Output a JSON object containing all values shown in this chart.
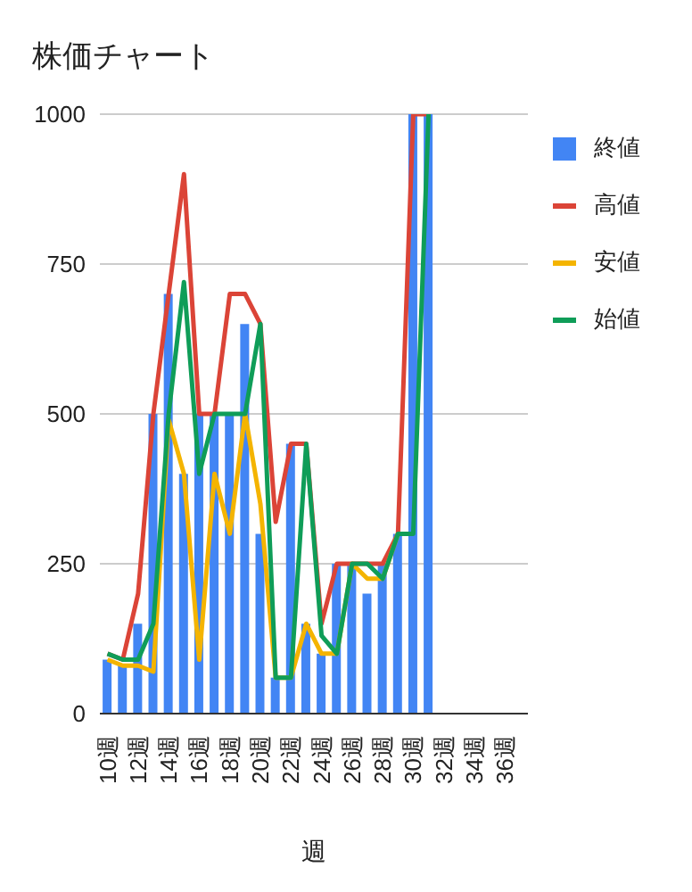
{
  "chart_data": {
    "type": "bar",
    "title": "株価チャート",
    "xlabel": "週",
    "categories": [
      "10週",
      null,
      "12週",
      null,
      "14週",
      null,
      "16週",
      null,
      "18週",
      null,
      "20週",
      null,
      "22週",
      null,
      "24週",
      null,
      "26週",
      null,
      "28週",
      null,
      "30週",
      null,
      "32週",
      null,
      "34週",
      null,
      "36週",
      null
    ],
    "series": [
      {
        "name": "終値",
        "color": "#4285f4",
        "values": [
          90,
          80,
          150,
          500,
          700,
          400,
          500,
          500,
          500,
          650,
          300,
          60,
          450,
          150,
          100,
          250,
          250,
          200,
          250,
          300,
          1000,
          1000,
          null,
          null,
          null,
          null,
          null,
          null
        ]
      },
      {
        "name": "高値",
        "type": "line",
        "color": "#db4437",
        "values": [
          100,
          90,
          200,
          500,
          700,
          900,
          500,
          500,
          700,
          700,
          650,
          320,
          450,
          450,
          150,
          250,
          250,
          250,
          250,
          300,
          1000,
          1000,
          null,
          null,
          null,
          null,
          null,
          null
        ]
      },
      {
        "name": "安値",
        "type": "line",
        "color": "#f4b400",
        "values": [
          90,
          80,
          80,
          70,
          490,
          400,
          90,
          400,
          300,
          500,
          350,
          60,
          60,
          150,
          100,
          100,
          250,
          225,
          225,
          300,
          null,
          null,
          null,
          null,
          null,
          null,
          null,
          null
        ]
      },
      {
        "name": "始値",
        "type": "line",
        "color": "#0f9d58",
        "values": [
          100,
          90,
          90,
          150,
          500,
          720,
          400,
          500,
          500,
          500,
          650,
          60,
          60,
          450,
          130,
          100,
          250,
          250,
          225,
          300,
          300,
          1000,
          null,
          null,
          null,
          null,
          null,
          null
        ]
      }
    ],
    "ylim": [
      0,
      1000
    ],
    "yticks": [
      0,
      250,
      500,
      750,
      1000
    ],
    "grid": "y",
    "legend": "right",
    "marker": "none"
  }
}
